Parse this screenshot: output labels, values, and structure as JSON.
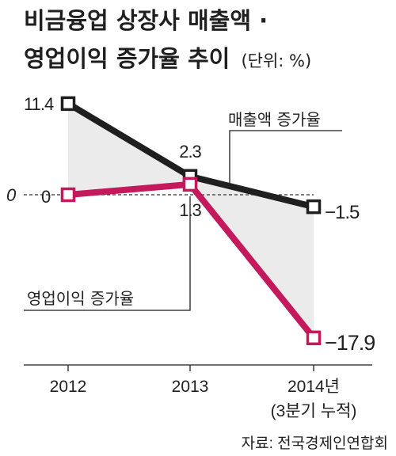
{
  "title_line1": "비금융업 상장사 매출액 ·",
  "title_line2": "영업이익 증가율 추이",
  "unit": "(단위: %)",
  "source": "자료: 전국경제인연합회",
  "zero_label": "0",
  "colors": {
    "sales": "#1f1f1f",
    "profit": "#c4195c",
    "band": "#ebebeb",
    "text": "#1f1f1f"
  },
  "chart_data": {
    "type": "line",
    "categories": [
      "2012",
      "2013",
      "2014년"
    ],
    "category_sublabels": [
      "",
      "",
      "(3분기 누적)"
    ],
    "series": [
      {
        "name": "매출액 증가율",
        "values": [
          11.4,
          2.3,
          -1.5
        ],
        "labels": [
          "11.4",
          "2.3",
          "−1.5"
        ]
      },
      {
        "name": "영업이익 증가율",
        "values": [
          0,
          1.3,
          -17.9
        ],
        "labels": [
          "0",
          "1.3",
          "−17.9"
        ]
      }
    ],
    "ylim": [
      -18,
      12
    ],
    "zero_line": true,
    "shaded_between_series": true,
    "grid": false
  }
}
